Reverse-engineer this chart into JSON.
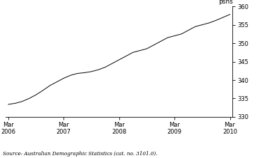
{
  "ylabel": "psns",
  "source_text": "Source: Australian Demographic Statistics (cat. no. 3101.0).",
  "ylim": [
    330,
    360
  ],
  "yticks": [
    330,
    335,
    340,
    345,
    350,
    355,
    360
  ],
  "xtick_labels": [
    "Mar\n2006",
    "Mar\n2007",
    "Mar\n2008",
    "Mar\n2009",
    "Mar\n2010"
  ],
  "xtick_positions": [
    0,
    4,
    8,
    12,
    16
  ],
  "line_color": "#000000",
  "background_color": "#ffffff",
  "data_x": [
    0,
    0.5,
    1,
    1.5,
    2,
    2.5,
    3,
    3.5,
    4,
    4.5,
    5,
    5.5,
    6,
    6.5,
    7,
    7.5,
    8,
    8.5,
    9,
    9.5,
    10,
    10.5,
    11,
    11.5,
    12,
    12.5,
    13,
    13.5,
    14,
    14.5,
    15,
    15.5,
    16
  ],
  "data_y": [
    333.4,
    333.7,
    334.2,
    335.0,
    336.0,
    337.2,
    338.5,
    339.5,
    340.5,
    341.3,
    341.8,
    342.0,
    342.3,
    342.8,
    343.5,
    344.5,
    345.5,
    346.5,
    347.5,
    348.0,
    348.5,
    349.5,
    350.5,
    351.5,
    352.0,
    352.5,
    353.5,
    354.5,
    355.0,
    355.5,
    356.2,
    357.0,
    357.8
  ]
}
